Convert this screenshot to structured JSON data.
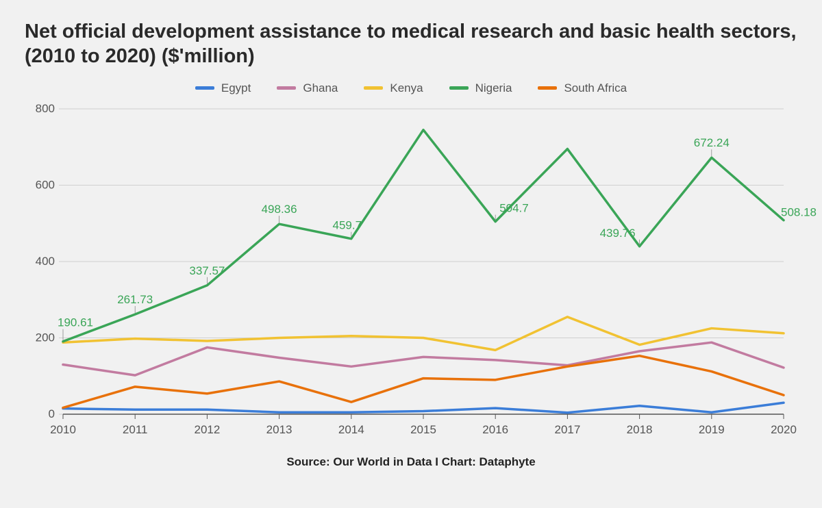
{
  "title": "Net official development assistance to medical research and basic health sectors, (2010 to 2020) ($'million)",
  "source": "Source: Our World in Data I Chart: Dataphyte",
  "chart": {
    "type": "line",
    "background_color": "#f1f1f1",
    "grid_color": "#d0d0d0",
    "axis_line_color": "#a0a0a0",
    "text_color": "#555555",
    "title_fontsize": 29,
    "axis_fontsize": 17,
    "legend_fontsize": 17,
    "label_fontsize": 17,
    "line_width": 3.5,
    "ylim": [
      0,
      800
    ],
    "ytick_step": 200,
    "x_categories": [
      "2010",
      "2011",
      "2012",
      "2013",
      "2014",
      "2015",
      "2016",
      "2017",
      "2018",
      "2019",
      "2020"
    ],
    "series": [
      {
        "name": "Egypt",
        "color": "#3b7dd8",
        "values": [
          15,
          12,
          12,
          5,
          5,
          8,
          16,
          4,
          22,
          5,
          30
        ]
      },
      {
        "name": "Ghana",
        "color": "#c27ba0",
        "values": [
          130,
          102,
          175,
          148,
          125,
          150,
          142,
          128,
          165,
          188,
          122
        ]
      },
      {
        "name": "Kenya",
        "color": "#f1c232",
        "values": [
          188,
          198,
          192,
          200,
          205,
          200,
          168,
          255,
          182,
          225,
          212
        ]
      },
      {
        "name": "Nigeria",
        "color": "#3aa557",
        "values": [
          190.61,
          261.73,
          337.57,
          498.36,
          459.7,
          745,
          504.7,
          695,
          439.76,
          672.24,
          508.18
        ],
        "labels": [
          190.61,
          261.73,
          337.57,
          498.36,
          459.7,
          null,
          504.7,
          null,
          439.76,
          672.24,
          508.18
        ]
      },
      {
        "name": "South Africa",
        "color": "#e8710a",
        "values": [
          17,
          72,
          54,
          86,
          32,
          94,
          90,
          125,
          153,
          112,
          50
        ]
      }
    ]
  }
}
